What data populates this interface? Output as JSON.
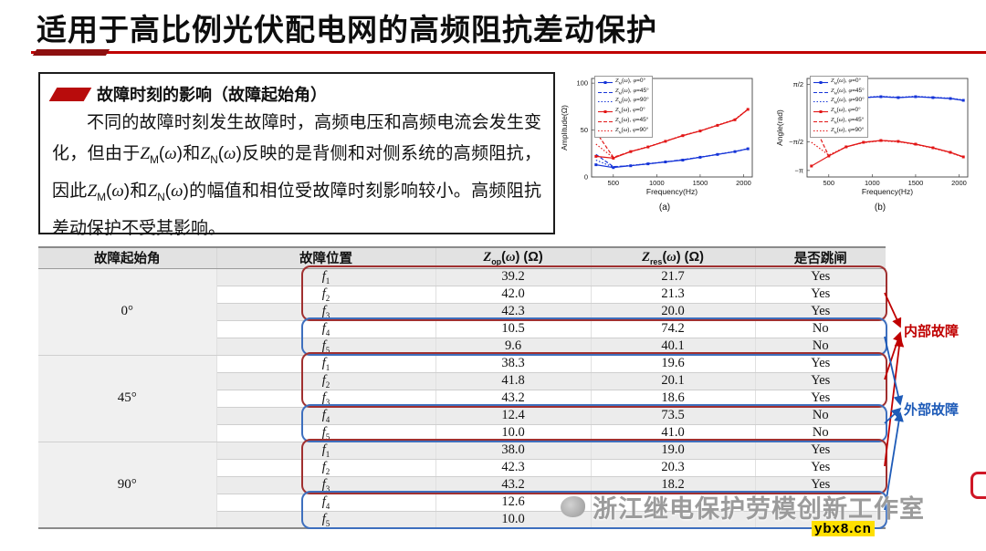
{
  "title": "适用于高比例光伏配电网的高频阻抗差动保护",
  "section": {
    "heading": "故障时刻的影响（故障起始角）",
    "body": "不同的故障时刻发生故障时，高频电压和高频电流会发生变化，但由于*Z*~M~(*ω*)和*Z*~N~(*ω*)反映的是背侧和对侧系统的高频阻抗，因此*Z*~M~(*ω*)和*Z*~N~(*ω*)的幅值和相位受故障时刻影响较小。高频阻抗差动保护不受其影响。"
  },
  "chart_data": [
    {
      "type": "line",
      "caption": "(a)",
      "xlabel": "Frequency(Hz)",
      "ylabel": "Amplitude(Ω)",
      "xlim": [
        250,
        2100
      ],
      "ylim": [
        0,
        105
      ],
      "xticks": [
        {
          "v": 500,
          "t": "500"
        },
        {
          "v": 1000,
          "t": "1000"
        },
        {
          "v": 1500,
          "t": "1500"
        },
        {
          "v": 2000,
          "t": "2000"
        }
      ],
      "yticks": [
        {
          "v": 0,
          "t": "0"
        },
        {
          "v": 50,
          "t": "50"
        },
        {
          "v": 100,
          "t": "100"
        }
      ],
      "x": [
        300,
        500,
        700,
        900,
        1100,
        1300,
        1500,
        1700,
        1900,
        2050
      ],
      "series": [
        {
          "name": "*Z*~M~(*ω*), *φ*=0°",
          "color": "#1635d8",
          "dash": "",
          "marker": true,
          "y": [
            13,
            10,
            12,
            14,
            16,
            18,
            21,
            24,
            27,
            30
          ]
        },
        {
          "name": "*Z*~M~(*ω*), *φ*=45°",
          "color": "#1635d8",
          "dash": "4 2",
          "marker": false,
          "y": [
            24,
            11,
            12,
            14,
            16,
            18.5,
            21,
            24,
            27,
            30
          ]
        },
        {
          "name": "*Z*~M~(*ω*), *φ*=90°",
          "color": "#1635d8",
          "dash": "1.5 2",
          "marker": false,
          "y": [
            18,
            10.5,
            12.3,
            14.2,
            16.2,
            18.2,
            21.2,
            24.2,
            27.2,
            30.2
          ]
        },
        {
          "name": "*Z*~N~(*ω*), *φ*=0°",
          "color": "#e21616",
          "dash": "",
          "marker": true,
          "y": [
            22,
            20,
            27,
            32,
            38,
            44,
            49,
            55,
            61,
            72
          ]
        },
        {
          "name": "*Z*~N~(*ω*), *φ*=45°",
          "color": "#e21616",
          "dash": "4 2",
          "marker": false,
          "y": [
            48,
            21,
            27,
            32,
            38,
            44,
            49,
            55,
            61,
            72
          ]
        },
        {
          "name": "*Z*~N~(*ω*), *φ*=90°",
          "color": "#e21616",
          "dash": "1.5 2",
          "marker": false,
          "y": [
            35,
            20.5,
            27.3,
            32.3,
            38.3,
            44.3,
            49.3,
            55.3,
            61.3,
            72.3
          ]
        }
      ]
    },
    {
      "type": "line",
      "caption": "(b)",
      "xlabel": "Frequency(Hz)",
      "ylabel": "Angle(rad)",
      "xlim": [
        250,
        2100
      ],
      "ylim": [
        -3.5,
        1.9
      ],
      "xticks": [
        {
          "v": 500,
          "t": "500"
        },
        {
          "v": 1000,
          "t": "1000"
        },
        {
          "v": 1500,
          "t": "1500"
        },
        {
          "v": 2000,
          "t": "2000"
        }
      ],
      "yticks": [
        {
          "v": 1.5708,
          "t": "π/2"
        },
        {
          "v": -1.5708,
          "t": "−π/2"
        },
        {
          "v": -3.1416,
          "t": "−π"
        }
      ],
      "x": [
        300,
        500,
        700,
        900,
        1100,
        1300,
        1500,
        1700,
        1900,
        2050
      ],
      "series": [
        {
          "name": "*Z*~M~(*ω*), *φ*=0°",
          "color": "#1635d8",
          "dash": "",
          "marker": true,
          "y": [
            -0.55,
            0.35,
            0.75,
            0.85,
            0.9,
            0.85,
            0.9,
            0.85,
            0.8,
            0.7
          ]
        },
        {
          "name": "*Z*~M~(*ω*), *φ*=45°",
          "color": "#1635d8",
          "dash": "4 2",
          "marker": false,
          "y": [
            -1.1,
            0.3,
            0.75,
            0.85,
            0.9,
            0.85,
            0.9,
            0.85,
            0.8,
            0.7
          ]
        },
        {
          "name": "*Z*~M~(*ω*), *φ*=90°",
          "color": "#1635d8",
          "dash": "1.5 2",
          "marker": false,
          "y": [
            -0.8,
            0.33,
            0.77,
            0.87,
            0.92,
            0.87,
            0.92,
            0.87,
            0.82,
            0.72
          ]
        },
        {
          "name": "*Z*~N~(*ω*), *φ*=0°",
          "color": "#e21616",
          "dash": "",
          "marker": true,
          "y": [
            -2.9,
            -2.35,
            -1.85,
            -1.6,
            -1.5,
            -1.55,
            -1.7,
            -1.9,
            -2.15,
            -2.4
          ]
        },
        {
          "name": "*Z*~N~(*ω*), *φ*=45°",
          "color": "#e21616",
          "dash": "4 2",
          "marker": false,
          "y": [
            -0.35,
            -2.35,
            -1.85,
            -1.6,
            -1.5,
            -1.55,
            -1.7,
            -1.9,
            -2.15,
            -2.4
          ]
        },
        {
          "name": "*Z*~N~(*ω*), *φ*=90°",
          "color": "#e21616",
          "dash": "1.5 2",
          "marker": false,
          "y": [
            -1.6,
            -2.3,
            -1.85,
            -1.62,
            -1.52,
            -1.57,
            -1.72,
            -1.92,
            -2.17,
            -2.42
          ]
        }
      ]
    }
  ],
  "table": {
    "headers": [
      "故障起始角",
      "故障位置",
      "*Z*~op~(*ω*) (Ω)",
      "*Z*~res~(*ω*) (Ω)",
      "是否跳闸"
    ],
    "groups": [
      {
        "angle": "0°",
        "rows": [
          {
            "loc": "*f*~1~",
            "zop": "39.2",
            "zres": "21.7",
            "trip": "Yes"
          },
          {
            "loc": "*f*~2~",
            "zop": "42.0",
            "zres": "21.3",
            "trip": "Yes"
          },
          {
            "loc": "*f*~3~",
            "zop": "42.3",
            "zres": "20.0",
            "trip": "Yes"
          },
          {
            "loc": "*f*~4~",
            "zop": "10.5",
            "zres": "74.2",
            "trip": "No"
          },
          {
            "loc": "*f*~5~",
            "zop": "9.6",
            "zres": "40.1",
            "trip": "No"
          }
        ]
      },
      {
        "angle": "45°",
        "rows": [
          {
            "loc": "*f*~1~",
            "zop": "38.3",
            "zres": "19.6",
            "trip": "Yes"
          },
          {
            "loc": "*f*~2~",
            "zop": "41.8",
            "zres": "20.1",
            "trip": "Yes"
          },
          {
            "loc": "*f*~3~",
            "zop": "43.2",
            "zres": "18.6",
            "trip": "Yes"
          },
          {
            "loc": "*f*~4~",
            "zop": "12.4",
            "zres": "73.5",
            "trip": "No"
          },
          {
            "loc": "*f*~5~",
            "zop": "10.0",
            "zres": "41.0",
            "trip": "No"
          }
        ]
      },
      {
        "angle": "90°",
        "rows": [
          {
            "loc": "*f*~1~",
            "zop": "38.0",
            "zres": "19.0",
            "trip": "Yes"
          },
          {
            "loc": "*f*~2~",
            "zop": "42.3",
            "zres": "20.3",
            "trip": "Yes"
          },
          {
            "loc": "*f*~3~",
            "zop": "43.2",
            "zres": "18.2",
            "trip": "Yes"
          },
          {
            "loc": "*f*~4~",
            "zop": "12.6",
            "zres": "",
            "trip": ""
          },
          {
            "loc": "*f*~5~",
            "zop": "10.0",
            "zres": "",
            "trip": ""
          }
        ]
      }
    ]
  },
  "annotations": {
    "internal_label": "内部故障",
    "external_label": "外部故障"
  },
  "footer": {
    "watermark": "浙江继电保护劳模创新工作室",
    "site": "ybx8.cn"
  },
  "colors": {
    "accent_red": "#c00000",
    "accent_blue": "#1e5bb8",
    "series_blue": "#1635d8",
    "series_red": "#e21616"
  }
}
